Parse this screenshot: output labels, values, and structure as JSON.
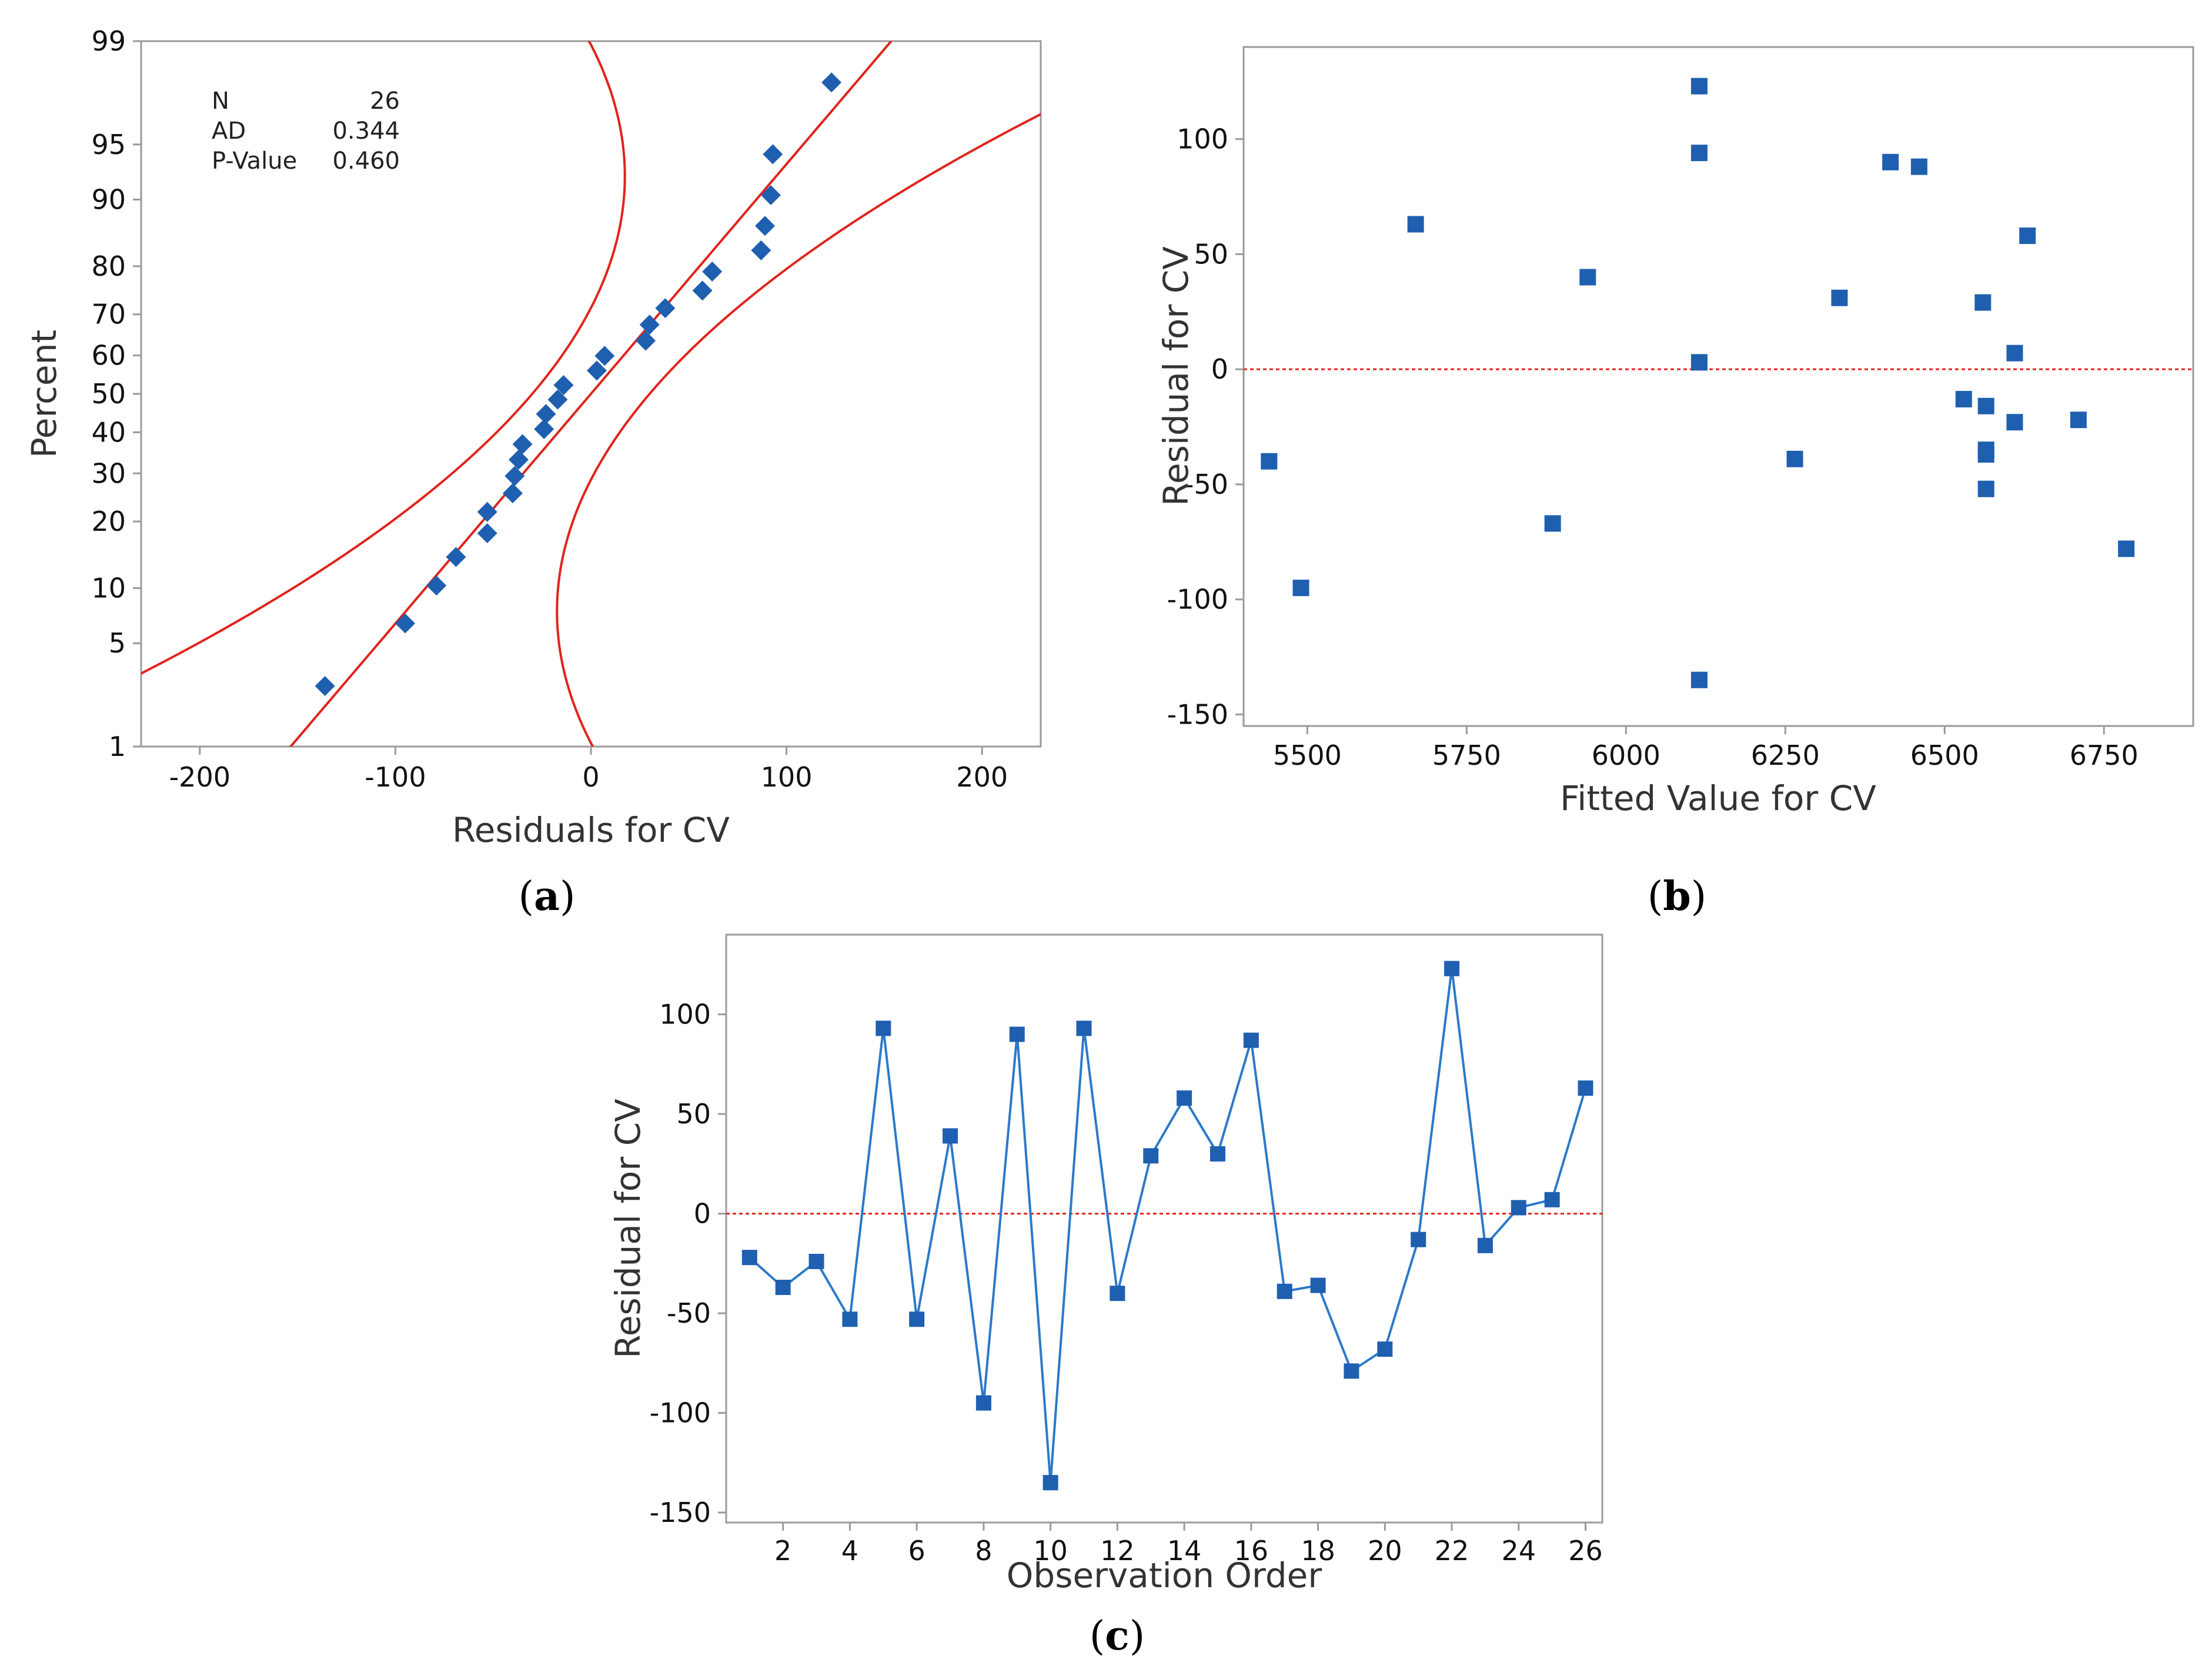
{
  "colors": {
    "marker": "#1f5fb0",
    "order_line": "#2b7ac9",
    "fit_line": "#e0241c",
    "zero_line": "#e0241c",
    "frame": "#9a9a9a"
  },
  "chart_data": [
    {
      "id": "a",
      "type": "scatter",
      "subtype": "normal-probability-plot",
      "caption": "(a)",
      "caption_letter": "a",
      "xlabel": "Residuals for CV",
      "ylabel": "Percent",
      "xlim": [
        -230,
        230
      ],
      "ylim_percent": [
        1,
        99
      ],
      "x_ticks": [
        -200,
        -100,
        0,
        100,
        200
      ],
      "y_ticks": [
        1,
        5,
        10,
        20,
        30,
        40,
        50,
        60,
        70,
        80,
        90,
        95,
        99
      ],
      "y_scale": "normal-probability",
      "stats": [
        {
          "label": "N",
          "value": "26"
        },
        {
          "label": "AD",
          "value": "0.344"
        },
        {
          "label": "P-Value",
          "value": "0.460"
        }
      ],
      "marker": "diamond",
      "fit_mean": 0,
      "fit_sd": 66,
      "ci_half_width_at_50": 30,
      "ci_spread_slope": 23,
      "points": [
        {
          "x": -136,
          "y": 2.7
        },
        {
          "x": -95,
          "y": 6.5
        },
        {
          "x": -79,
          "y": 10.3
        },
        {
          "x": -69,
          "y": 14.1
        },
        {
          "x": -53,
          "y": 17.9
        },
        {
          "x": -53,
          "y": 21.8
        },
        {
          "x": -40,
          "y": 25.6
        },
        {
          "x": -39,
          "y": 29.4
        },
        {
          "x": -37,
          "y": 33.2
        },
        {
          "x": -35,
          "y": 37.0
        },
        {
          "x": -24,
          "y": 40.8
        },
        {
          "x": -23,
          "y": 44.7
        },
        {
          "x": -17,
          "y": 48.5
        },
        {
          "x": -14,
          "y": 52.3
        },
        {
          "x": 3,
          "y": 56.1
        },
        {
          "x": 7,
          "y": 59.9
        },
        {
          "x": 28,
          "y": 63.7
        },
        {
          "x": 30,
          "y": 67.6
        },
        {
          "x": 38,
          "y": 71.4
        },
        {
          "x": 57,
          "y": 75.2
        },
        {
          "x": 62,
          "y": 79.0
        },
        {
          "x": 87,
          "y": 82.8
        },
        {
          "x": 89,
          "y": 86.6
        },
        {
          "x": 92,
          "y": 90.5
        },
        {
          "x": 93,
          "y": 94.3
        },
        {
          "x": 123,
          "y": 98.0
        }
      ]
    },
    {
      "id": "b",
      "type": "scatter",
      "subtype": "residuals-vs-fits",
      "caption": "(b)",
      "caption_letter": "b",
      "xlabel": "Fitted Value for CV",
      "ylabel": "Residual for CV",
      "xlim": [
        5400,
        6890
      ],
      "ylim": [
        -155,
        140
      ],
      "x_ticks": [
        5500,
        5750,
        6000,
        6250,
        6500,
        6750
      ],
      "y_ticks": [
        -150,
        -100,
        -50,
        0,
        50,
        100
      ],
      "reference_line": 0,
      "marker": "square",
      "points": [
        {
          "x": 5440,
          "y": -40
        },
        {
          "x": 5490,
          "y": -95
        },
        {
          "x": 5670,
          "y": 63
        },
        {
          "x": 5885,
          "y": -67
        },
        {
          "x": 5940,
          "y": 40
        },
        {
          "x": 6115,
          "y": 123
        },
        {
          "x": 6115,
          "y": 94
        },
        {
          "x": 6115,
          "y": 3
        },
        {
          "x": 6115,
          "y": -135
        },
        {
          "x": 6265,
          "y": -39
        },
        {
          "x": 6335,
          "y": 31
        },
        {
          "x": 6415,
          "y": 90
        },
        {
          "x": 6460,
          "y": 88
        },
        {
          "x": 6530,
          "y": -13
        },
        {
          "x": 6560,
          "y": 29
        },
        {
          "x": 6565,
          "y": -16
        },
        {
          "x": 6565,
          "y": -35
        },
        {
          "x": 6565,
          "y": -37
        },
        {
          "x": 6565,
          "y": -52
        },
        {
          "x": 6610,
          "y": 7
        },
        {
          "x": 6610,
          "y": -23
        },
        {
          "x": 6630,
          "y": 58
        },
        {
          "x": 6710,
          "y": -22
        },
        {
          "x": 6785,
          "y": -78
        }
      ]
    },
    {
      "id": "c",
      "type": "line",
      "subtype": "residuals-vs-order",
      "caption": "(c)",
      "caption_letter": "c",
      "xlabel": "Observation Order",
      "ylabel": "Residual for CV",
      "xlim": [
        0.3,
        26.5
      ],
      "ylim": [
        -155,
        140
      ],
      "x_ticks": [
        2,
        4,
        6,
        8,
        10,
        12,
        14,
        16,
        18,
        20,
        22,
        24,
        26
      ],
      "y_ticks": [
        -150,
        -100,
        -50,
        0,
        50,
        100
      ],
      "reference_line": 0,
      "marker": "square",
      "x": [
        1,
        2,
        3,
        4,
        5,
        6,
        7,
        8,
        9,
        10,
        11,
        12,
        13,
        14,
        15,
        16,
        17,
        18,
        19,
        20,
        21,
        22,
        23,
        24,
        25,
        26
      ],
      "values": [
        -22,
        -37,
        -24,
        -53,
        93,
        -53,
        39,
        -95,
        90,
        -135,
        93,
        -40,
        29,
        58,
        30,
        87,
        -39,
        -36,
        -79,
        -68,
        -13,
        123,
        -16,
        3,
        7,
        63
      ]
    }
  ]
}
